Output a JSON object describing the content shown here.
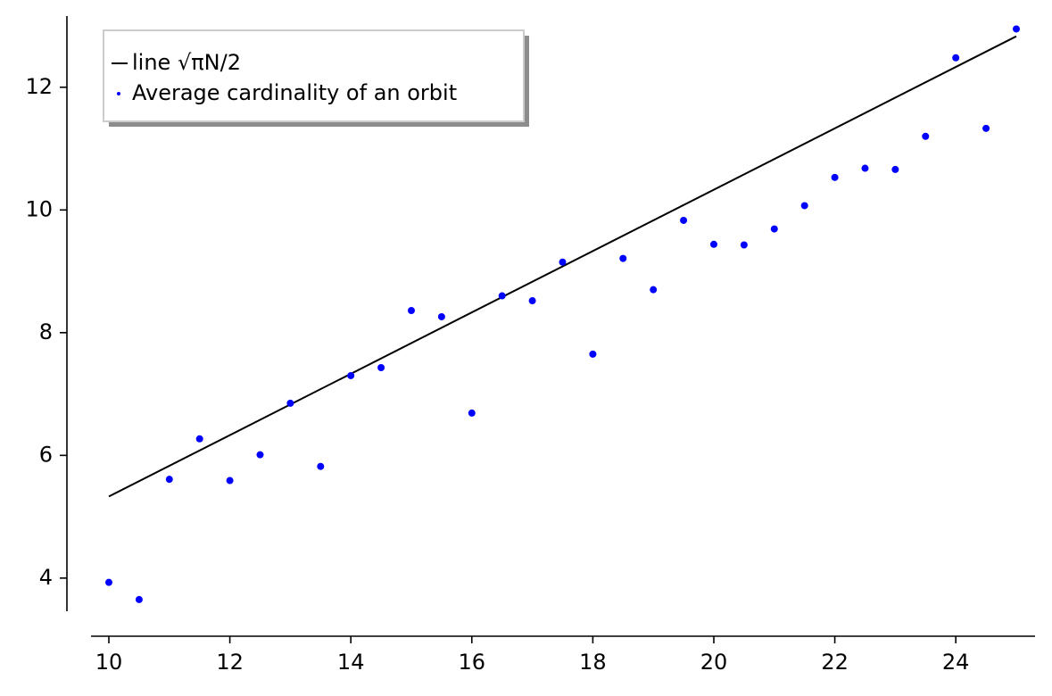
{
  "chart_data": {
    "type": "scatter",
    "xlim": [
      9.705,
      25.31
    ],
    "ylim": [
      3.46,
      13.16
    ],
    "xticks": [
      10,
      12,
      14,
      16,
      18,
      20,
      22,
      24
    ],
    "yticks": [
      4,
      6,
      8,
      10,
      12
    ],
    "legend": "upper left",
    "series": [
      {
        "name": "line √πN/2",
        "kind": "line",
        "color": "#000000",
        "x": [
          10,
          25
        ],
        "values": [
          5.33,
          12.83
        ]
      },
      {
        "name": "Average cardinality of an orbit",
        "kind": "points",
        "color": "#0000ff",
        "x": [
          10,
          10.5,
          11,
          11.5,
          12,
          12.5,
          13,
          13.5,
          14,
          14.5,
          15,
          15.5,
          16,
          16.5,
          17,
          17.5,
          18,
          18.5,
          19,
          19.5,
          20,
          20.5,
          21,
          21.5,
          22,
          22.5,
          23,
          23.5,
          24,
          24.5,
          25
        ],
        "values": [
          3.93,
          3.65,
          5.61,
          6.27,
          5.59,
          6.01,
          6.85,
          5.82,
          7.3,
          7.43,
          8.36,
          8.26,
          6.69,
          8.6,
          8.52,
          9.15,
          7.65,
          9.21,
          8.7,
          9.83,
          9.44,
          9.43,
          9.69,
          10.07,
          10.53,
          10.68,
          10.66,
          11.2,
          12.48,
          11.33,
          12.95
        ]
      }
    ]
  }
}
